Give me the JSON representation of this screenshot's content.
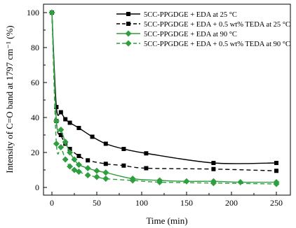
{
  "chart_data": {
    "type": "line",
    "xlabel": "Time (min)",
    "ylabel": "Intensity of C=O band at 1797 cm⁻¹ (%)",
    "xlim": [
      -10,
      260
    ],
    "ylim": [
      -2,
      101
    ],
    "xticks": [
      "0",
      "50",
      "100",
      "150",
      "200",
      "250"
    ],
    "yticks": [
      "0",
      "20",
      "40",
      "60",
      "80",
      "100"
    ],
    "grid": false,
    "legend_position": "top-right",
    "series": [
      {
        "name": "5CC-PPGDGE + EDA at 25 °C",
        "color": "#000000",
        "marker": "square",
        "line": "solid",
        "x": [
          0,
          5,
          10,
          15,
          20,
          30,
          45,
          60,
          80,
          105,
          180,
          250
        ],
        "y": [
          100,
          46,
          43,
          39,
          37,
          34,
          29,
          25,
          22,
          19.5,
          14,
          14
        ]
      },
      {
        "name": "5CC-PPGDGE + EDA + 0.5 wt% TEDA at 25 °C",
        "color": "#000000",
        "marker": "square",
        "line": "dashed",
        "x": [
          0,
          5,
          10,
          15,
          20,
          30,
          40,
          60,
          80,
          105,
          180,
          250
        ],
        "y": [
          100,
          38,
          30,
          25,
          22,
          18,
          15.5,
          13.5,
          12.5,
          11,
          10.5,
          9.5
        ]
      },
      {
        "name": "5CC-PPGDGE + EDA at 90 °C",
        "color": "#2e9e3e",
        "marker": "diamond",
        "line": "solid",
        "x": [
          0,
          5,
          10,
          15,
          20,
          25,
          30,
          40,
          50,
          60,
          90,
          120,
          150,
          180,
          210,
          250
        ],
        "y": [
          100,
          38,
          33,
          26,
          20,
          16,
          13,
          11,
          9.5,
          8.5,
          5,
          4,
          3.5,
          3.5,
          3,
          3
        ]
      },
      {
        "name": "5CC-PPGDGE + EDA + 0.5 wt% TEDA at 90 °C",
        "color": "#2e9e3e",
        "marker": "diamond",
        "line": "dashed",
        "x": [
          0,
          5,
          10,
          15,
          20,
          25,
          30,
          40,
          50,
          60,
          90,
          120,
          180,
          250
        ],
        "y": [
          100,
          25,
          23,
          16,
          12,
          10,
          9,
          7,
          6,
          5,
          4,
          3,
          2.5,
          2
        ]
      }
    ]
  }
}
